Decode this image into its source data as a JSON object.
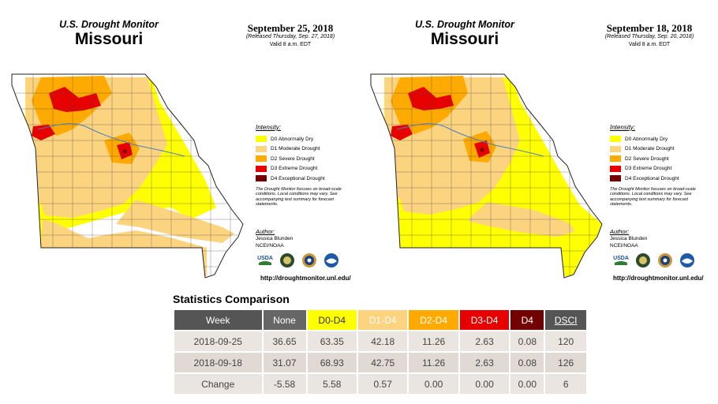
{
  "maps": [
    {
      "brand": "U.S. Drought Monitor",
      "state": "Missouri",
      "date": "September 25, 2018",
      "released": "(Released Thursday, Sep. 27, 2018)",
      "valid": "Valid 8 a.m. EDT"
    },
    {
      "brand": "U.S. Drought Monitor",
      "state": "Missouri",
      "date": "September 18, 2018",
      "released": "(Released Thursday, Sep. 20, 2018)",
      "valid": "Valid 8 a.m. EDT"
    }
  ],
  "legend": {
    "title": "Intensity:",
    "items": [
      {
        "label": "D0 Abnormally Dry",
        "color": "#ffff00"
      },
      {
        "label": "D1 Moderate Drought",
        "color": "#fcd37f"
      },
      {
        "label": "D2 Severe Drought",
        "color": "#ffaa00"
      },
      {
        "label": "D3 Extreme Drought",
        "color": "#e60000"
      },
      {
        "label": "D4 Exceptional Drought",
        "color": "#730000"
      }
    ],
    "note": "The Drought Monitor focuses on broad-scale conditions. Local conditions may vary. See accompanying text summary for forecast statements."
  },
  "author": {
    "title": "Author:",
    "name": "Jessica Blunden",
    "org": "NCEI/NOAA"
  },
  "logos": [
    "usda-logo",
    "nidis-logo",
    "ndmc-logo",
    "noaa-logo"
  ],
  "logo_text": {
    "usda": "USDA"
  },
  "url": "http://droughtmonitor.unl.edu/",
  "stats": {
    "title": "Statistics Comparison",
    "headers": [
      {
        "label": "Week",
        "bg": "#555555",
        "fg": "#ffffff"
      },
      {
        "label": "None",
        "bg": "#666666",
        "fg": "#ffffff"
      },
      {
        "label": "D0-D4",
        "bg": "#ffff00",
        "fg": "#333333"
      },
      {
        "label": "D1-D4",
        "bg": "#fcd37f",
        "fg": "#ffffff"
      },
      {
        "label": "D2-D4",
        "bg": "#ffaa00",
        "fg": "#ffffff"
      },
      {
        "label": "D3-D4",
        "bg": "#e60000",
        "fg": "#ffffff"
      },
      {
        "label": "D4",
        "bg": "#730000",
        "fg": "#ffffff"
      },
      {
        "label": "DSCI",
        "bg": "#555555",
        "fg": "#ffffff"
      }
    ],
    "rows": [
      [
        "2018-09-25",
        "36.65",
        "63.35",
        "42.18",
        "11.26",
        "2.63",
        "0.08",
        "120"
      ],
      [
        "2018-09-18",
        "31.07",
        "68.93",
        "42.75",
        "11.26",
        "2.63",
        "0.08",
        "126"
      ],
      [
        "Change",
        "-5.58",
        "5.58",
        "0.57",
        "0.00",
        "0.00",
        "0.00",
        "6"
      ]
    ]
  }
}
